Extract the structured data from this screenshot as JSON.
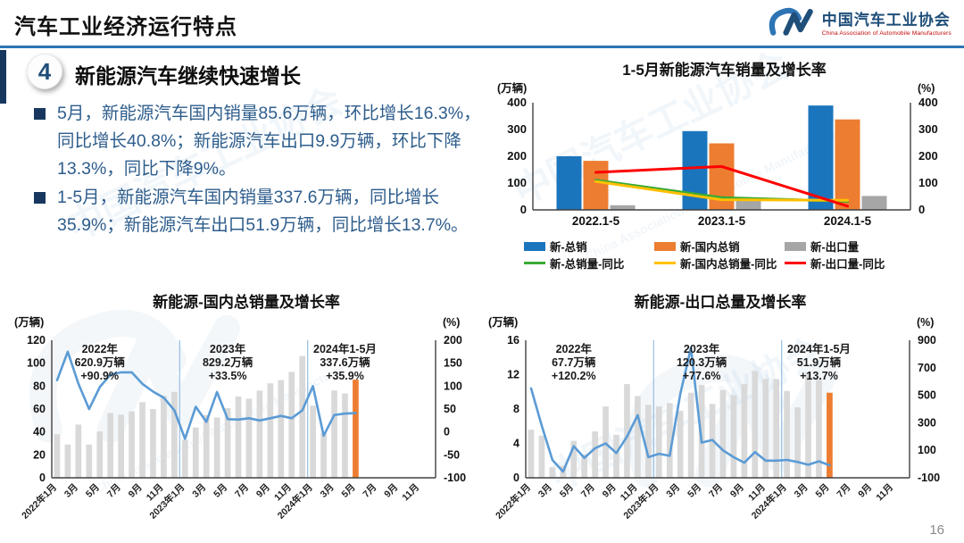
{
  "header": {
    "title": "汽车工业经济运行特点",
    "logo": {
      "org_cn": "中国汽车工业协会",
      "org_en": "China Association of Automobile Manufacturers"
    }
  },
  "section": {
    "badge": "4",
    "heading": "新能源汽车继续快速增长",
    "bullets": [
      "5月，新能源汽车国内销量85.6万辆，环比增长16.3%，同比增长40.8%；新能源汽车出口9.9万辆，环比下降13.3%，同比下降9%。",
      "1-5月，新能源汽车国内销量337.6万辆，同比增长35.9%；新能源汽车出口51.9万辆，同比增长13.7%。"
    ]
  },
  "page_number": "16",
  "colors": {
    "accent_blue": "#2E74B5",
    "navy": "#17375E",
    "text_blue": "#2E5D8C",
    "bar_blue": "#1B75BC",
    "bar_orange": "#ED7D31",
    "bar_gray": "#A6A6A6",
    "line_green": "#3AAA35",
    "line_yellow": "#FFC000",
    "line_red": "#FF0000",
    "line_blue": "#5B9BD5",
    "month_bar_gray": "#D9D9D9",
    "divider_blue": "#9DC3E6"
  },
  "chart_data": [
    {
      "type": "bar",
      "subtype": "grouped-with-lines",
      "title": "1-5月新能源汽车销量及增长率",
      "left_axis": {
        "label": "(万辆)",
        "min": 0,
        "max": 400,
        "ticks": [
          400,
          300,
          200,
          100,
          0
        ]
      },
      "right_axis": {
        "label": "(%)",
        "min": 0,
        "max": 400,
        "ticks": [
          400,
          300,
          200,
          100,
          0
        ]
      },
      "categories": [
        "2022.1-5",
        "2023.1-5",
        "2024.1-5"
      ],
      "bar_series": [
        {
          "name": "新-总销",
          "color": "#1B75BC",
          "values": [
            200.3,
            294.0,
            389.5
          ]
        },
        {
          "name": "新-国内总销",
          "color": "#ED7D31",
          "values": [
            183.0,
            248.3,
            337.6
          ]
        },
        {
          "name": "新-出口量",
          "color": "#A6A6A6",
          "values": [
            17.3,
            45.7,
            51.9
          ]
        }
      ],
      "line_series": [
        {
          "name": "新-总销量-同比",
          "color": "#3AAA35",
          "values": [
            111,
            46,
            32
          ]
        },
        {
          "name": "新-国内总销量-同比",
          "color": "#FFC000",
          "values": [
            106,
            38,
            36
          ]
        },
        {
          "name": "新-出口量-同比",
          "color": "#FF0000",
          "values": [
            140,
            162,
            14
          ]
        }
      ],
      "legend_position": "bottom",
      "grid": false
    },
    {
      "type": "bar",
      "subtype": "monthly-with-line",
      "title": "新能源-国内总销量及增长率",
      "left_axis": {
        "label": "(万辆)",
        "min": 0,
        "max": 120,
        "ticks": [
          120,
          100,
          80,
          60,
          40,
          20,
          0
        ]
      },
      "right_axis": {
        "label": "(%)",
        "min": -100,
        "max": 200,
        "ticks": [
          200,
          150,
          100,
          50,
          0,
          -50,
          -100
        ]
      },
      "x_tick_labels": [
        "2022年1月",
        "3月",
        "5月",
        "7月",
        "9月",
        "11月",
        "2023年1月",
        "3月",
        "5月",
        "7月",
        "9月",
        "11月",
        "2024年1月",
        "3月",
        "5月",
        "7月",
        "9月",
        "11月"
      ],
      "total_slots": 36,
      "divider_indices": [
        12,
        24
      ],
      "bars": {
        "name": "月度国内销量(万辆)",
        "color": "#D9D9D9",
        "highlight_index": 28,
        "highlight_color": "#ED7D31",
        "values": [
          38,
          29,
          46.5,
          29,
          40.5,
          56.5,
          55,
          58,
          66,
          60,
          71.5,
          75,
          33.2,
          43.9,
          54.9,
          52.7,
          60.8,
          70.9,
          69,
          76.1,
          82.4,
          85.3,
          92.4,
          106.3,
          62.9,
          38.8,
          76.2,
          73.6,
          85.6
        ]
      },
      "line": {
        "name": "同比增长率(%)",
        "color": "#5B9BD5",
        "values": [
          113,
          175,
          105,
          50,
          98,
          125,
          130,
          130,
          105,
          88,
          75,
          47,
          -15,
          55,
          22,
          87,
          28,
          27,
          30,
          25,
          30,
          35,
          30,
          47,
          100,
          -8,
          37,
          40,
          41
        ]
      },
      "annotations": [
        {
          "slot": 4.5,
          "lines": [
            "2022年",
            "620.9万辆",
            "+90.9%"
          ]
        },
        {
          "slot": 16.5,
          "lines": [
            "2023年",
            "829.2万辆",
            "+33.5%"
          ]
        },
        {
          "slot": 27.5,
          "lines": [
            "2024年1-5月",
            "337.6万辆",
            "+35.9%"
          ]
        }
      ],
      "grid": false
    },
    {
      "type": "bar",
      "subtype": "monthly-with-line",
      "title": "新能源-出口总量及增长率",
      "left_axis": {
        "label": "(万辆)",
        "min": 0,
        "max": 16,
        "ticks": [
          16,
          12,
          8,
          4,
          0
        ]
      },
      "right_axis": {
        "label": "(%)",
        "min": -100,
        "max": 900,
        "ticks": [
          900,
          700,
          500,
          300,
          100,
          -100
        ]
      },
      "x_tick_labels": [
        "2022年1月",
        "3月",
        "5月",
        "7月",
        "9月",
        "11月",
        "2023年1月",
        "3月",
        "5月",
        "7月",
        "9月",
        "11月",
        "2024年1月",
        "3月",
        "5月",
        "7月",
        "9月",
        "11月"
      ],
      "total_slots": 36,
      "divider_indices": [
        12,
        24
      ],
      "bars": {
        "name": "月度出口量(万辆)",
        "color": "#D9D9D9",
        "highlight_index": 28,
        "highlight_color": "#ED7D31",
        "values": [
          5.6,
          4.9,
          1.2,
          1.4,
          4.3,
          2.7,
          5.4,
          8.3,
          5.0,
          10.9,
          9.5,
          8.5,
          8.3,
          8.7,
          7.8,
          9.9,
          10.8,
          8.6,
          10.2,
          9.6,
          10.9,
          12.4,
          11.5,
          11.5,
          10.1,
          8.2,
          12.3,
          11.4,
          9.9
        ]
      },
      "line": {
        "name": "同比增长率(%)",
        "color": "#5B9BD5",
        "values": [
          550,
          280,
          30,
          -55,
          130,
          45,
          115,
          150,
          80,
          200,
          356,
          50,
          75,
          60,
          512,
          844,
          156,
          175,
          100,
          50,
          10,
          87,
          25,
          25,
          30,
          15,
          -5,
          20,
          -9
        ]
      },
      "annotations": [
        {
          "slot": 4.5,
          "lines": [
            "2022年",
            "67.7万辆",
            "+120.2%"
          ]
        },
        {
          "slot": 16.5,
          "lines": [
            "2023年",
            "120.3万辆",
            "+77.6%"
          ]
        },
        {
          "slot": 27.5,
          "lines": [
            "2024年1-5月",
            "51.9万辆",
            "+13.7%"
          ]
        }
      ],
      "grid": false
    }
  ]
}
